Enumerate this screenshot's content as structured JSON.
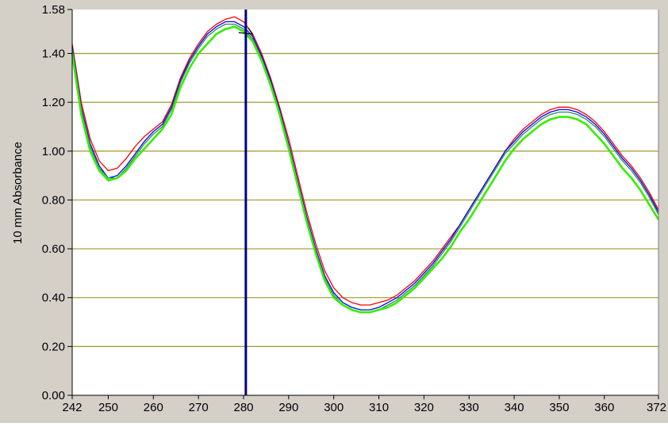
{
  "chart_data": {
    "type": "line",
    "title": "",
    "xlabel": "",
    "ylabel": "10 mm Absorbance",
    "xlim": [
      242,
      372
    ],
    "ylim": [
      0,
      1.58
    ],
    "x_ticks": [
      "242",
      "250",
      "260",
      "270",
      "280",
      "290",
      "300",
      "310",
      "320",
      "330",
      "340",
      "350",
      "360",
      "372"
    ],
    "y_ticks": [
      "0.00",
      "0.20",
      "0.40",
      "0.60",
      "0.80",
      "1.00",
      "1.20",
      "1.40",
      "1.58"
    ],
    "grid": true,
    "cursor_x": 280.5,
    "series": [
      {
        "color": "#ff0000",
        "points": [
          [
            242,
            1.44
          ],
          [
            244,
            1.2
          ],
          [
            246,
            1.05
          ],
          [
            248,
            0.96
          ],
          [
            250,
            0.92
          ],
          [
            252,
            0.93
          ],
          [
            254,
            0.97
          ],
          [
            256,
            1.02
          ],
          [
            258,
            1.06
          ],
          [
            260,
            1.09
          ],
          [
            262,
            1.12
          ],
          [
            264,
            1.19
          ],
          [
            266,
            1.3
          ],
          [
            268,
            1.38
          ],
          [
            270,
            1.44
          ],
          [
            272,
            1.49
          ],
          [
            274,
            1.52
          ],
          [
            276,
            1.54
          ],
          [
            278,
            1.55
          ],
          [
            280,
            1.53
          ],
          [
            282,
            1.48
          ],
          [
            284,
            1.4
          ],
          [
            286,
            1.3
          ],
          [
            288,
            1.18
          ],
          [
            290,
            1.05
          ],
          [
            292,
            0.9
          ],
          [
            294,
            0.75
          ],
          [
            296,
            0.62
          ],
          [
            298,
            0.51
          ],
          [
            300,
            0.44
          ],
          [
            302,
            0.4
          ],
          [
            304,
            0.38
          ],
          [
            306,
            0.37
          ],
          [
            308,
            0.37
          ],
          [
            310,
            0.38
          ],
          [
            312,
            0.39
          ],
          [
            314,
            0.41
          ],
          [
            316,
            0.44
          ],
          [
            318,
            0.47
          ],
          [
            320,
            0.51
          ],
          [
            322,
            0.55
          ],
          [
            324,
            0.6
          ],
          [
            326,
            0.65
          ],
          [
            328,
            0.7
          ],
          [
            330,
            0.76
          ],
          [
            332,
            0.82
          ],
          [
            334,
            0.88
          ],
          [
            336,
            0.94
          ],
          [
            338,
            1.0
          ],
          [
            340,
            1.05
          ],
          [
            342,
            1.09
          ],
          [
            344,
            1.12
          ],
          [
            346,
            1.15
          ],
          [
            348,
            1.17
          ],
          [
            350,
            1.18
          ],
          [
            352,
            1.18
          ],
          [
            354,
            1.17
          ],
          [
            356,
            1.15
          ],
          [
            358,
            1.12
          ],
          [
            360,
            1.08
          ],
          [
            362,
            1.03
          ],
          [
            364,
            0.98
          ],
          [
            366,
            0.94
          ],
          [
            368,
            0.89
          ],
          [
            370,
            0.83
          ],
          [
            372,
            0.76
          ]
        ]
      },
      {
        "color": "#0000ff",
        "points": [
          [
            242,
            1.43
          ],
          [
            244,
            1.18
          ],
          [
            246,
            1.03
          ],
          [
            248,
            0.94
          ],
          [
            250,
            0.89
          ],
          [
            252,
            0.9
          ],
          [
            254,
            0.94
          ],
          [
            256,
            0.99
          ],
          [
            258,
            1.04
          ],
          [
            260,
            1.08
          ],
          [
            262,
            1.11
          ],
          [
            264,
            1.18
          ],
          [
            266,
            1.29
          ],
          [
            268,
            1.37
          ],
          [
            270,
            1.43
          ],
          [
            272,
            1.48
          ],
          [
            274,
            1.51
          ],
          [
            276,
            1.53
          ],
          [
            278,
            1.53
          ],
          [
            280,
            1.51
          ],
          [
            282,
            1.47
          ],
          [
            284,
            1.39
          ],
          [
            286,
            1.29
          ],
          [
            288,
            1.17
          ],
          [
            290,
            1.03
          ],
          [
            292,
            0.88
          ],
          [
            294,
            0.73
          ],
          [
            296,
            0.6
          ],
          [
            298,
            0.49
          ],
          [
            300,
            0.42
          ],
          [
            302,
            0.38
          ],
          [
            304,
            0.36
          ],
          [
            306,
            0.35
          ],
          [
            308,
            0.35
          ],
          [
            310,
            0.36
          ],
          [
            312,
            0.38
          ],
          [
            314,
            0.4
          ],
          [
            316,
            0.43
          ],
          [
            318,
            0.46
          ],
          [
            320,
            0.5
          ],
          [
            322,
            0.54
          ],
          [
            324,
            0.59
          ],
          [
            326,
            0.64
          ],
          [
            328,
            0.7
          ],
          [
            330,
            0.76
          ],
          [
            332,
            0.82
          ],
          [
            334,
            0.88
          ],
          [
            336,
            0.94
          ],
          [
            338,
            1.0
          ],
          [
            340,
            1.04
          ],
          [
            342,
            1.08
          ],
          [
            344,
            1.11
          ],
          [
            346,
            1.14
          ],
          [
            348,
            1.16
          ],
          [
            350,
            1.17
          ],
          [
            352,
            1.17
          ],
          [
            354,
            1.16
          ],
          [
            356,
            1.14
          ],
          [
            358,
            1.11
          ],
          [
            360,
            1.07
          ],
          [
            362,
            1.02
          ],
          [
            364,
            0.97
          ],
          [
            366,
            0.93
          ],
          [
            368,
            0.88
          ],
          [
            370,
            0.82
          ],
          [
            372,
            0.75
          ]
        ]
      },
      {
        "color": "#2e8b57",
        "points": [
          [
            242,
            1.42
          ],
          [
            244,
            1.17
          ],
          [
            246,
            1.02
          ],
          [
            248,
            0.93
          ],
          [
            250,
            0.89
          ],
          [
            252,
            0.89
          ],
          [
            254,
            0.93
          ],
          [
            256,
            0.98
          ],
          [
            258,
            1.03
          ],
          [
            260,
            1.07
          ],
          [
            262,
            1.1
          ],
          [
            264,
            1.17
          ],
          [
            266,
            1.28
          ],
          [
            268,
            1.36
          ],
          [
            270,
            1.42
          ],
          [
            272,
            1.47
          ],
          [
            274,
            1.5
          ],
          [
            276,
            1.52
          ],
          [
            278,
            1.52
          ],
          [
            280,
            1.5
          ],
          [
            282,
            1.46
          ],
          [
            284,
            1.38
          ],
          [
            286,
            1.28
          ],
          [
            288,
            1.16
          ],
          [
            290,
            1.02
          ],
          [
            292,
            0.87
          ],
          [
            294,
            0.72
          ],
          [
            296,
            0.59
          ],
          [
            298,
            0.48
          ],
          [
            300,
            0.41
          ],
          [
            302,
            0.37
          ],
          [
            304,
            0.35
          ],
          [
            306,
            0.34
          ],
          [
            308,
            0.34
          ],
          [
            310,
            0.35
          ],
          [
            312,
            0.37
          ],
          [
            314,
            0.39
          ],
          [
            316,
            0.42
          ],
          [
            318,
            0.45
          ],
          [
            320,
            0.49
          ],
          [
            322,
            0.53
          ],
          [
            324,
            0.58
          ],
          [
            326,
            0.63
          ],
          [
            328,
            0.69
          ],
          [
            330,
            0.75
          ],
          [
            332,
            0.81
          ],
          [
            334,
            0.87
          ],
          [
            336,
            0.93
          ],
          [
            338,
            0.99
          ],
          [
            340,
            1.03
          ],
          [
            342,
            1.07
          ],
          [
            344,
            1.1
          ],
          [
            346,
            1.13
          ],
          [
            348,
            1.15
          ],
          [
            350,
            1.16
          ],
          [
            352,
            1.16
          ],
          [
            354,
            1.15
          ],
          [
            356,
            1.13
          ],
          [
            358,
            1.1
          ],
          [
            360,
            1.06
          ],
          [
            362,
            1.01
          ],
          [
            364,
            0.96
          ],
          [
            366,
            0.92
          ],
          [
            368,
            0.87
          ],
          [
            370,
            0.81
          ],
          [
            372,
            0.74
          ]
        ]
      },
      {
        "color": "#33ee00",
        "points": [
          [
            242,
            1.4
          ],
          [
            244,
            1.15
          ],
          [
            246,
            1.0
          ],
          [
            248,
            0.92
          ],
          [
            250,
            0.88
          ],
          [
            252,
            0.89
          ],
          [
            254,
            0.92
          ],
          [
            256,
            0.97
          ],
          [
            258,
            1.01
          ],
          [
            260,
            1.05
          ],
          [
            262,
            1.09
          ],
          [
            264,
            1.15
          ],
          [
            266,
            1.26
          ],
          [
            268,
            1.34
          ],
          [
            270,
            1.4
          ],
          [
            272,
            1.44
          ],
          [
            274,
            1.48
          ],
          [
            276,
            1.5
          ],
          [
            278,
            1.51
          ],
          [
            280,
            1.49
          ],
          [
            282,
            1.45
          ],
          [
            284,
            1.37
          ],
          [
            286,
            1.27
          ],
          [
            288,
            1.15
          ],
          [
            290,
            1.01
          ],
          [
            292,
            0.86
          ],
          [
            294,
            0.71
          ],
          [
            296,
            0.58
          ],
          [
            298,
            0.47
          ],
          [
            300,
            0.4
          ],
          [
            302,
            0.37
          ],
          [
            304,
            0.35
          ],
          [
            306,
            0.34
          ],
          [
            308,
            0.34
          ],
          [
            310,
            0.35
          ],
          [
            312,
            0.36
          ],
          [
            314,
            0.38
          ],
          [
            316,
            0.41
          ],
          [
            318,
            0.44
          ],
          [
            320,
            0.48
          ],
          [
            322,
            0.52
          ],
          [
            324,
            0.56
          ],
          [
            326,
            0.61
          ],
          [
            328,
            0.67
          ],
          [
            330,
            0.72
          ],
          [
            332,
            0.78
          ],
          [
            334,
            0.84
          ],
          [
            336,
            0.9
          ],
          [
            338,
            0.96
          ],
          [
            340,
            1.01
          ],
          [
            342,
            1.05
          ],
          [
            344,
            1.08
          ],
          [
            346,
            1.11
          ],
          [
            348,
            1.13
          ],
          [
            350,
            1.14
          ],
          [
            352,
            1.14
          ],
          [
            354,
            1.13
          ],
          [
            356,
            1.11
          ],
          [
            358,
            1.07
          ],
          [
            360,
            1.03
          ],
          [
            362,
            0.98
          ],
          [
            364,
            0.93
          ],
          [
            366,
            0.89
          ],
          [
            368,
            0.84
          ],
          [
            370,
            0.78
          ],
          [
            372,
            0.72
          ]
        ]
      }
    ]
  }
}
